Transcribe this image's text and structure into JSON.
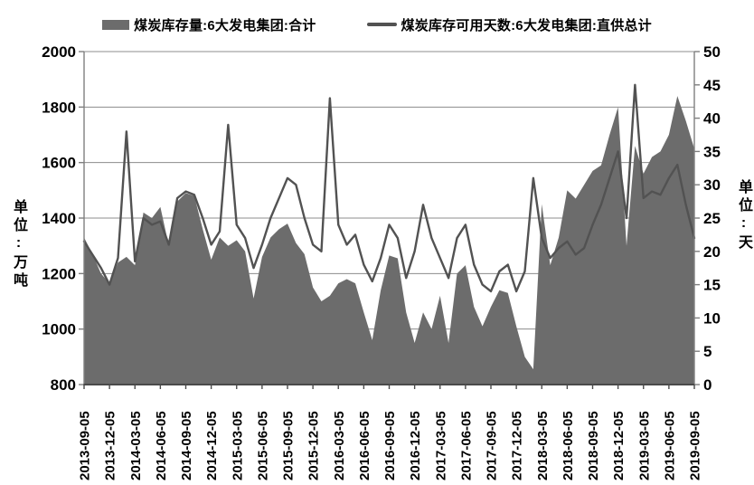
{
  "chart_data": {
    "type": "combo-area-line-dual-axis",
    "title": "",
    "legend_position": "top",
    "grid": true,
    "colors": {
      "area": "#6c6c6c",
      "line": "#525252",
      "grid": "#8c8c8c",
      "axis": "#7f7f7f",
      "axis_dark": "#4a4a4a",
      "text": "#000000"
    },
    "left_axis": {
      "title": "单位:万吨",
      "min": 800,
      "max": 2000,
      "step": 200,
      "ticks": [
        800,
        1000,
        1200,
        1400,
        1600,
        1800,
        2000
      ]
    },
    "right_axis": {
      "title": "单位:天",
      "min": 0,
      "max": 50,
      "step": 5,
      "ticks": [
        0,
        5,
        10,
        15,
        20,
        25,
        30,
        35,
        40,
        45,
        50
      ]
    },
    "x_ticks": [
      "2013-09-05",
      "2013-12-05",
      "2014-03-05",
      "2014-06-05",
      "2014-09-05",
      "2014-12-05",
      "2015-03-05",
      "2015-06-05",
      "2015-09-05",
      "2015-12-05",
      "2016-03-05",
      "2016-06-05",
      "2016-09-05",
      "2016-12-05",
      "2017-03-05",
      "2017-06-05",
      "2017-09-05",
      "2017-12-05",
      "2018-03-05",
      "2018-06-05",
      "2018-09-05",
      "2018-12-05",
      "2019-03-05",
      "2019-06-05",
      "2019-09-05"
    ],
    "months": [
      "2013-09",
      "2013-10",
      "2013-11",
      "2013-12",
      "2014-01",
      "2014-02",
      "2014-03",
      "2014-04",
      "2014-05",
      "2014-06",
      "2014-07",
      "2014-08",
      "2014-09",
      "2014-10",
      "2014-11",
      "2014-12",
      "2015-01",
      "2015-02",
      "2015-03",
      "2015-04",
      "2015-05",
      "2015-06",
      "2015-07",
      "2015-08",
      "2015-09",
      "2015-10",
      "2015-11",
      "2015-12",
      "2016-01",
      "2016-02",
      "2016-03",
      "2016-04",
      "2016-05",
      "2016-06",
      "2016-07",
      "2016-08",
      "2016-09",
      "2016-10",
      "2016-11",
      "2016-12",
      "2017-01",
      "2017-02",
      "2017-03",
      "2017-04",
      "2017-05",
      "2017-06",
      "2017-07",
      "2017-08",
      "2017-09",
      "2017-10",
      "2017-11",
      "2017-12",
      "2018-01",
      "2018-02",
      "2018-03",
      "2018-04",
      "2018-05",
      "2018-06",
      "2018-07",
      "2018-08",
      "2018-09",
      "2018-10",
      "2018-11",
      "2018-12",
      "2019-01",
      "2019-02",
      "2019-03",
      "2019-04",
      "2019-05",
      "2019-06",
      "2019-07",
      "2019-08",
      "2019-09"
    ],
    "series": [
      {
        "name": "煤炭库存量:6大发电集团:合计",
        "type": "area",
        "axis": "left",
        "unit": "万吨",
        "color": "#6c6c6c",
        "values": [
          1330,
          1270,
          1200,
          1165,
          1240,
          1260,
          1230,
          1420,
          1400,
          1440,
          1300,
          1460,
          1490,
          1480,
          1360,
          1250,
          1330,
          1300,
          1320,
          1280,
          1110,
          1260,
          1330,
          1360,
          1380,
          1310,
          1270,
          1150,
          1100,
          1120,
          1165,
          1180,
          1165,
          1060,
          960,
          1140,
          1265,
          1255,
          1060,
          950,
          1060,
          1000,
          1120,
          950,
          1200,
          1230,
          1080,
          1010,
          1080,
          1140,
          1130,
          1010,
          900,
          855,
          1450,
          1230,
          1330,
          1500,
          1470,
          1520,
          1570,
          1590,
          1700,
          1800,
          1300,
          1660,
          1560,
          1620,
          1640,
          1700,
          1840,
          1750,
          1650
        ]
      },
      {
        "name": "煤炭库存可用天数:6大发电集团:直供总计",
        "type": "line",
        "axis": "right",
        "unit": "天",
        "color": "#525252",
        "values": [
          21.5,
          19.5,
          17.5,
          15,
          19,
          38,
          18.5,
          25,
          24,
          24.5,
          21,
          28,
          29,
          28.5,
          25,
          21,
          23,
          39,
          24,
          22,
          17.5,
          21,
          25,
          28,
          31,
          30,
          25,
          21,
          20,
          43,
          24,
          21,
          22.5,
          18,
          15.5,
          19,
          24,
          22,
          16,
          20,
          27,
          22,
          19,
          16,
          22,
          24,
          18,
          15,
          14,
          17,
          18,
          14,
          17,
          31,
          22,
          19,
          20.5,
          21.5,
          19.5,
          20.5,
          24,
          27,
          31,
          35,
          25,
          45,
          28,
          29,
          28.5,
          31,
          33,
          27,
          22
        ]
      }
    ]
  }
}
